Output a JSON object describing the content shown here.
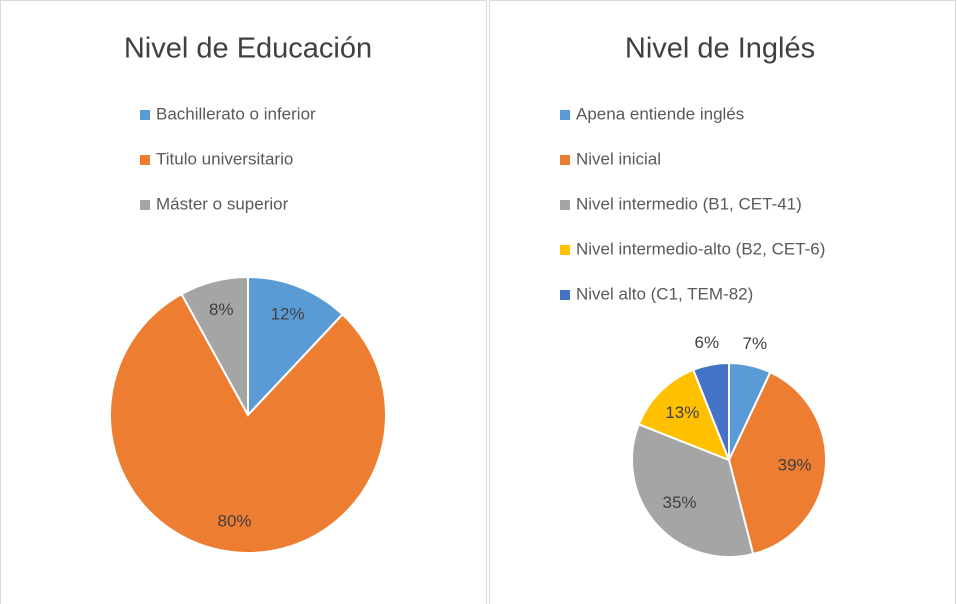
{
  "chart_data": [
    {
      "type": "pie",
      "title": "Nivel de Educación",
      "categories": [
        "Bachillerato o inferior",
        "Titulo universitario",
        "Máster o superior"
      ],
      "values": [
        12,
        80,
        8
      ],
      "value_labels": [
        "12%",
        "80%",
        "8%"
      ],
      "colors": [
        "#5b9bd5",
        "#ed7d31",
        "#a5a5a5"
      ]
    },
    {
      "type": "pie",
      "title": "Nivel de Inglés",
      "categories": [
        "Apena entiende inglés",
        "Nivel inicial",
        "Nivel intermedio (B1, CET-41)",
        "Nivel intermedio-alto (B2, CET-6)",
        "Nivel alto (C1, TEM-82)"
      ],
      "values": [
        7,
        39,
        35,
        13,
        6
      ],
      "value_labels": [
        "7%",
        "39%",
        "35%",
        "13%",
        "6%"
      ],
      "colors": [
        "#5b9bd5",
        "#ed7d31",
        "#a5a5a5",
        "#ffc000",
        "#4472c4"
      ]
    }
  ]
}
